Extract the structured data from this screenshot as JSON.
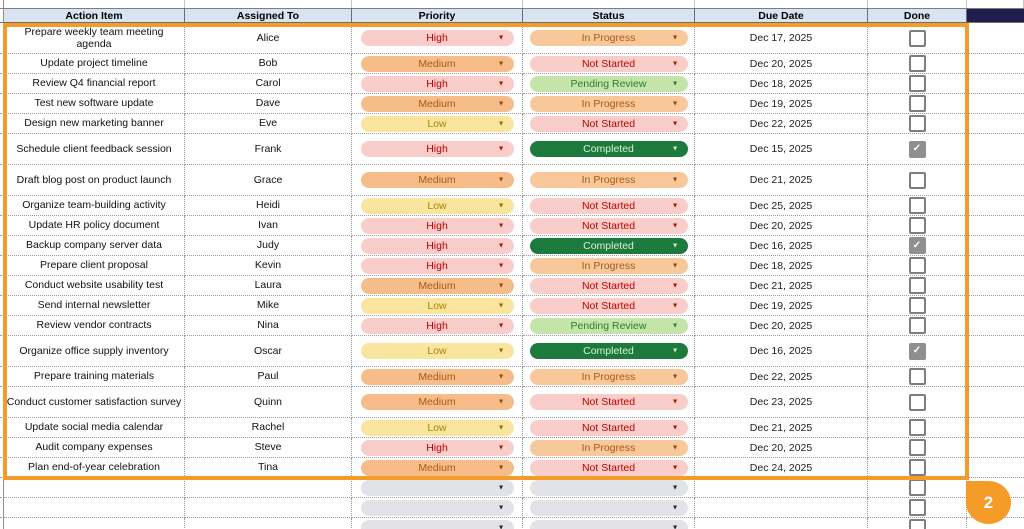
{
  "table": {
    "columns": [
      "Action Item",
      "Assigned To",
      "Priority",
      "Status",
      "Due Date",
      "Done"
    ],
    "rows": [
      {
        "action": "Prepare weekly team meeting agenda",
        "assignee": "Alice",
        "priority": "High",
        "status": "In Progress",
        "due": "Dec 17, 2025",
        "done": false,
        "tall": true
      },
      {
        "action": "Update project timeline",
        "assignee": "Bob",
        "priority": "Medium",
        "status": "Not Started",
        "due": "Dec 20, 2025",
        "done": false,
        "tall": false
      },
      {
        "action": "Review Q4 financial report",
        "assignee": "Carol",
        "priority": "High",
        "status": "Pending Review",
        "due": "Dec 18, 2025",
        "done": false,
        "tall": false
      },
      {
        "action": "Test new software update",
        "assignee": "Dave",
        "priority": "Medium",
        "status": "In Progress",
        "due": "Dec 19, 2025",
        "done": false,
        "tall": false
      },
      {
        "action": "Design new marketing banner",
        "assignee": "Eve",
        "priority": "Low",
        "status": "Not Started",
        "due": "Dec 22, 2025",
        "done": false,
        "tall": false
      },
      {
        "action": "Schedule client feedback session",
        "assignee": "Frank",
        "priority": "High",
        "status": "Completed",
        "due": "Dec 15, 2025",
        "done": true,
        "tall": true
      },
      {
        "action": "Draft blog post on product launch",
        "assignee": "Grace",
        "priority": "Medium",
        "status": "In Progress",
        "due": "Dec 21, 2025",
        "done": false,
        "tall": true
      },
      {
        "action": "Organize team-building activity",
        "assignee": "Heidi",
        "priority": "Low",
        "status": "Not Started",
        "due": "Dec 25, 2025",
        "done": false,
        "tall": false
      },
      {
        "action": "Update HR policy document",
        "assignee": "Ivan",
        "priority": "High",
        "status": "Not Started",
        "due": "Dec 20, 2025",
        "done": false,
        "tall": false
      },
      {
        "action": "Backup company server data",
        "assignee": "Judy",
        "priority": "High",
        "status": "Completed",
        "due": "Dec 16, 2025",
        "done": true,
        "tall": false
      },
      {
        "action": "Prepare client proposal",
        "assignee": "Kevin",
        "priority": "High",
        "status": "In Progress",
        "due": "Dec 18, 2025",
        "done": false,
        "tall": false
      },
      {
        "action": "Conduct website usability test",
        "assignee": "Laura",
        "priority": "Medium",
        "status": "Not Started",
        "due": "Dec 21, 2025",
        "done": false,
        "tall": false
      },
      {
        "action": "Send internal newsletter",
        "assignee": "Mike",
        "priority": "Low",
        "status": "Not Started",
        "due": "Dec 19, 2025",
        "done": false,
        "tall": false
      },
      {
        "action": "Review vendor contracts",
        "assignee": "Nina",
        "priority": "High",
        "status": "Pending Review",
        "due": "Dec 20, 2025",
        "done": false,
        "tall": false
      },
      {
        "action": "Organize office supply inventory",
        "assignee": "Oscar",
        "priority": "Low",
        "status": "Completed",
        "due": "Dec 16, 2025",
        "done": true,
        "tall": true
      },
      {
        "action": "Prepare training materials",
        "assignee": "Paul",
        "priority": "Medium",
        "status": "In Progress",
        "due": "Dec 22, 2025",
        "done": false,
        "tall": false
      },
      {
        "action": "Conduct customer satisfaction survey",
        "assignee": "Quinn",
        "priority": "Medium",
        "status": "Not Started",
        "due": "Dec 23, 2025",
        "done": false,
        "tall": true
      },
      {
        "action": "Update social media calendar",
        "assignee": "Rachel",
        "priority": "Low",
        "status": "Not Started",
        "due": "Dec 21, 2025",
        "done": false,
        "tall": false
      },
      {
        "action": "Audit company expenses",
        "assignee": "Steve",
        "priority": "High",
        "status": "In Progress",
        "due": "Dec 20, 2025",
        "done": false,
        "tall": false
      },
      {
        "action": "Plan end-of-year celebration",
        "assignee": "Tina",
        "priority": "Medium",
        "status": "Not Started",
        "due": "Dec 24, 2025",
        "done": false,
        "tall": false
      }
    ],
    "empty_rows": 3
  },
  "marker": {
    "label": "2"
  },
  "icons": {
    "dropdown": "▼",
    "check": "✓"
  },
  "colors": {
    "header_bg": "#d9e4f2",
    "header_extra_navy": "#211d4e",
    "selection_orange": "#f49c27",
    "priority_high_bg": "#f8cdca",
    "priority_high_text": "#c00000",
    "priority_medium_bg": "#f6bd8b",
    "priority_medium_text": "#a85a10",
    "priority_low_bg": "#fae59e",
    "priority_low_text": "#a98600",
    "status_in_progress_bg": "#f8c89b",
    "status_not_started_bg": "#f9cdc9",
    "status_pending_review_bg": "#c4e4a9",
    "status_pending_review_text": "#2e7d32",
    "status_completed_bg": "#1c7a3d",
    "status_completed_text": "#daf0d4",
    "empty_pill_bg": "#e2e3e8",
    "checkbox_checked_bg": "#8f8f8f"
  }
}
